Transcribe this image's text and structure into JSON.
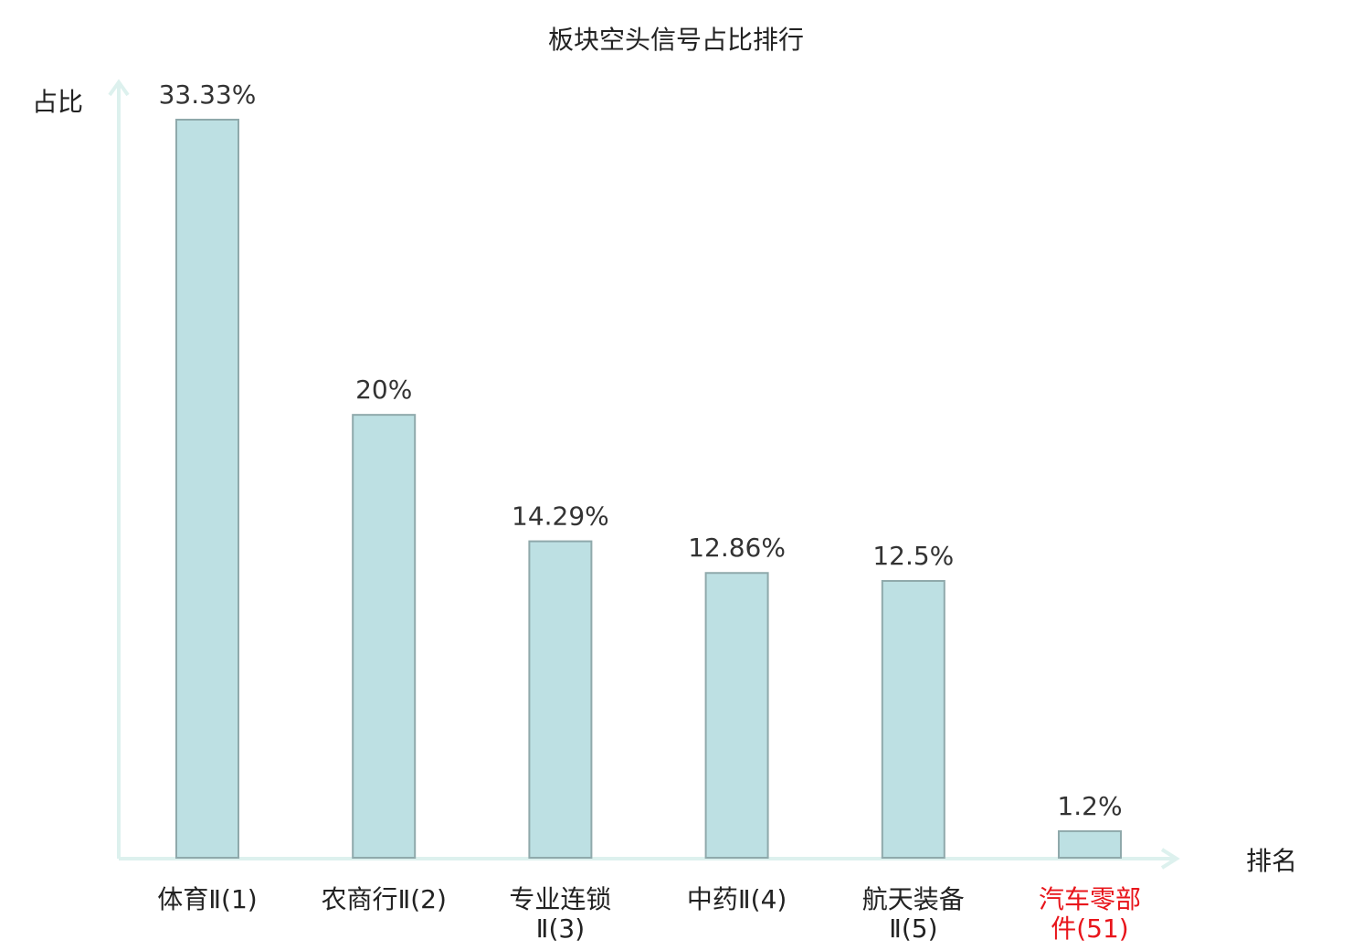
{
  "chart_data": {
    "type": "bar",
    "title": "板块空头信号占比排行",
    "xlabel": "排名",
    "ylabel": "占比",
    "categories": [
      [
        "体育Ⅱ(1)"
      ],
      [
        "农商行Ⅱ(2)"
      ],
      [
        "专业连锁",
        "Ⅱ(3)"
      ],
      [
        "中药Ⅱ(4)"
      ],
      [
        "航天装备",
        "Ⅱ(5)"
      ],
      [
        "汽车零部",
        "件(51)"
      ]
    ],
    "values": [
      33.33,
      20,
      14.29,
      12.86,
      12.5,
      1.2
    ],
    "value_labels": [
      "33.33%",
      "20%",
      "14.29%",
      "12.86%",
      "12.5%",
      "1.2%"
    ],
    "highlight_index": 5,
    "ylim": [
      0,
      35
    ],
    "grid": false,
    "colors": {
      "bar_fill": "#bde0e3",
      "bar_stroke": "#8fa9ab",
      "axis": "#ddf1ee",
      "highlight_label": "#e8151b",
      "text": "#222222"
    }
  }
}
